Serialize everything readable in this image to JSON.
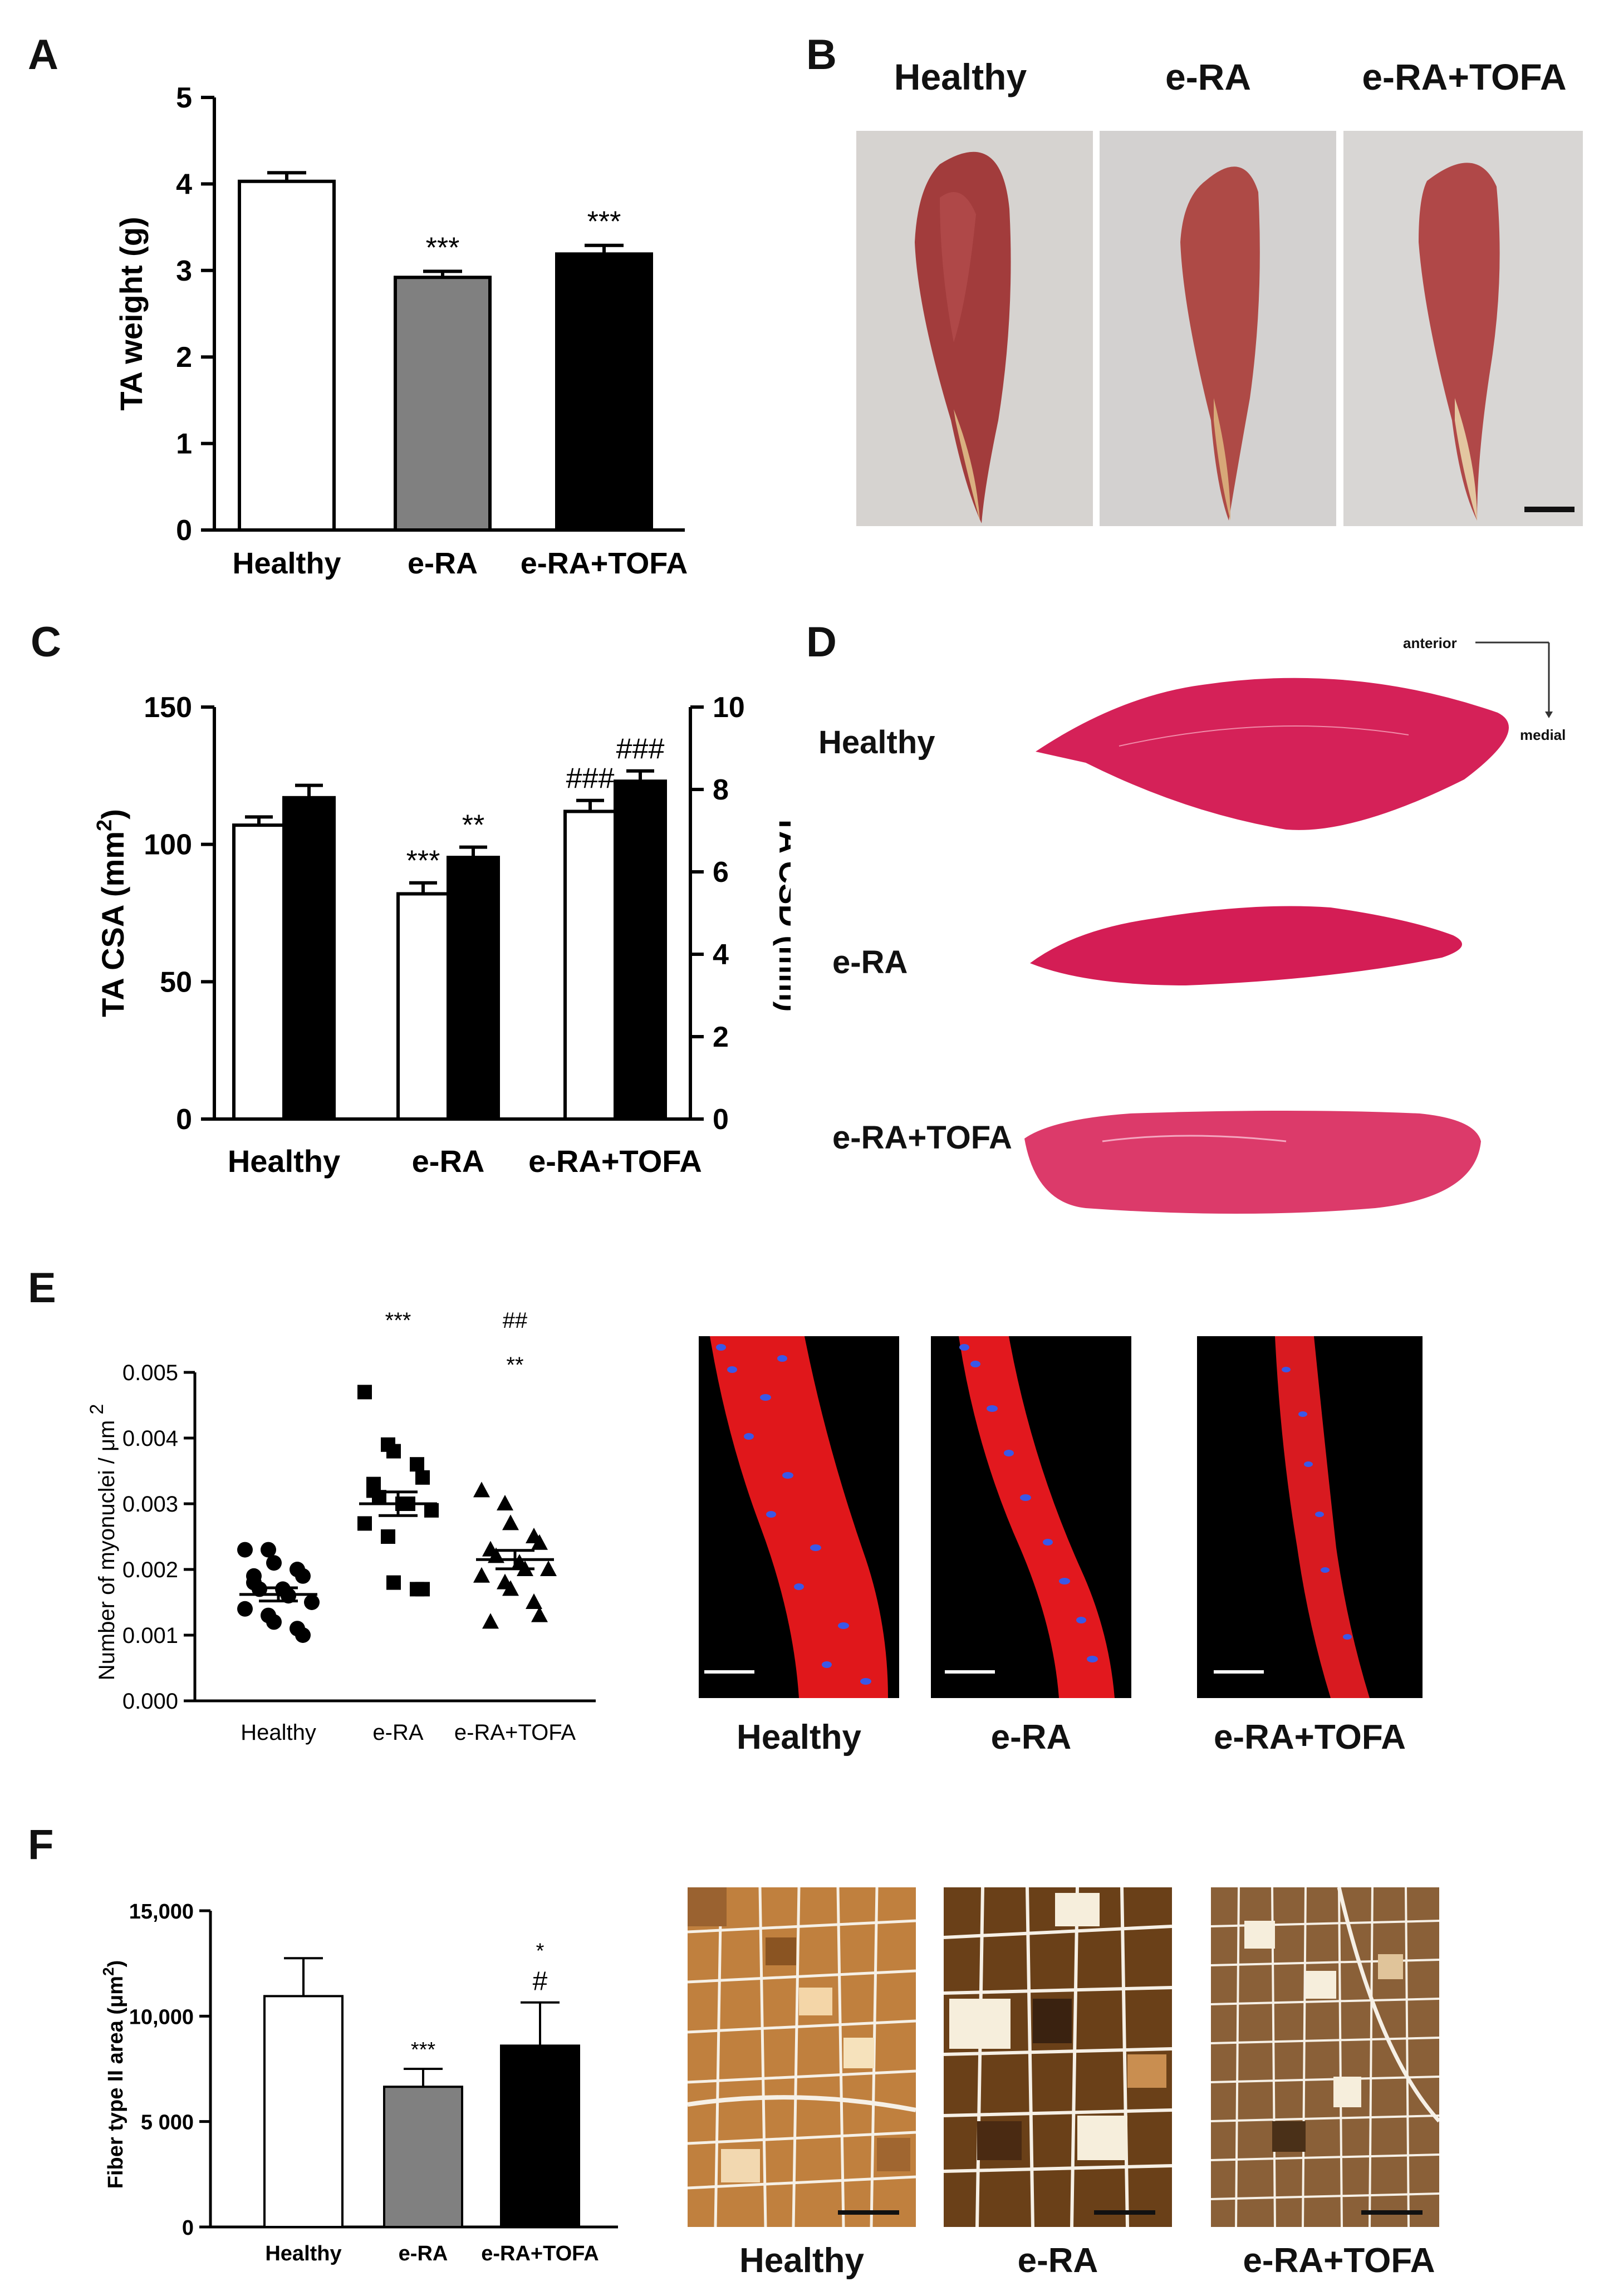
{
  "panels": {
    "A": "A",
    "B": "B",
    "C": "C",
    "D": "D",
    "E": "E",
    "F": "F"
  },
  "panelB": {
    "labels": [
      "Healthy",
      "e-RA",
      "e-RA+TOFA"
    ]
  },
  "panelD": {
    "labels": [
      "Healthy",
      "e-RA",
      "e-RA+TOFA"
    ],
    "orientation": {
      "anterior": "anterior",
      "medial": "medial"
    }
  },
  "panelE_images": {
    "labels": [
      "Healthy",
      "e-RA",
      "e-RA+TOFA"
    ]
  },
  "panelF_images": {
    "labels": [
      "Healthy",
      "e-RA",
      "e-RA+TOFA"
    ]
  },
  "colors": {
    "healthy_fill": "#ffffff",
    "era_fill": "#808080",
    "tofa_fill": "#000000",
    "muscle_photo": "#a03a3a",
    "he_stain": "#d8205a",
    "fluor_red": "#e01818",
    "fluor_blue": "#3a58e8",
    "atpase_dark": "#5a3816",
    "atpase_light": "#f6eedc"
  },
  "chart_data": [
    {
      "id": "A",
      "type": "bar",
      "categories": [
        "Healthy",
        "e-RA",
        "e-RA+TOFA"
      ],
      "values": [
        4.03,
        2.92,
        3.19
      ],
      "errors": [
        0.1,
        0.07,
        0.1
      ],
      "significance": [
        "",
        "***",
        "***"
      ],
      "xlabel": "",
      "ylabel": "TA weight (g)",
      "ylim": [
        0,
        5
      ],
      "yticks": [
        "0",
        "1",
        "2",
        "3",
        "4",
        "5"
      ]
    },
    {
      "id": "C",
      "type": "bar",
      "categories": [
        "Healthy",
        "e-RA",
        "e-RA+TOFA"
      ],
      "series": [
        {
          "name": "TA CSA (mm2)",
          "axis": "left",
          "values": [
            107,
            82,
            112
          ],
          "errors": [
            3,
            4,
            4
          ],
          "significance": [
            "",
            "***",
            "###"
          ]
        },
        {
          "name": "TA CSD (mm)",
          "axis": "right",
          "values": [
            7.8,
            6.35,
            8.2
          ],
          "errors": [
            0.3,
            0.25,
            0.25
          ],
          "significance": [
            "",
            "**",
            "###"
          ]
        }
      ],
      "ylabel_left": "TA CSA (mm",
      "ylabel_left_sup": "2",
      "ylabel_left_end": ")",
      "ylabel_right": "TA CSD (mm)",
      "ylim_left": [
        0,
        150
      ],
      "ylim_right": [
        0,
        10
      ],
      "yticks_left": [
        "0",
        "50",
        "100",
        "150"
      ],
      "yticks_right": [
        "0",
        "2",
        "4",
        "6",
        "8",
        "10"
      ]
    },
    {
      "id": "E",
      "type": "scatter",
      "categories": [
        "Healthy",
        "e-RA",
        "e-RA+TOFA"
      ],
      "points": [
        [
          0.0023,
          0.0023,
          0.0021,
          0.002,
          0.0019,
          0.0018,
          0.0017,
          0.0017,
          0.0016,
          0.0015,
          0.0014,
          0.0013,
          0.0012,
          0.0011,
          0.001,
          0.0019
        ],
        [
          0.0047,
          0.0039,
          0.0038,
          0.0036,
          0.0034,
          0.0032,
          0.0031,
          0.003,
          0.003,
          0.0029,
          0.0027,
          0.0025,
          0.0018,
          0.0017,
          0.0017,
          0.0033
        ],
        [
          0.0032,
          0.003,
          0.0027,
          0.0025,
          0.0024,
          0.0023,
          0.0022,
          0.0021,
          0.002,
          0.002,
          0.0019,
          0.0018,
          0.0017,
          0.0015,
          0.0013,
          0.0012
        ]
      ],
      "means": [
        0.00162,
        0.003,
        0.00215
      ],
      "sem": [
        0.0001,
        0.00018,
        0.00014
      ],
      "significance_top": [
        "",
        "***",
        "##"
      ],
      "significance_bottom": [
        "",
        "",
        "**"
      ],
      "ylabel": "Number of myonuclei / μm",
      "ylabel_sup": "2",
      "ylim": [
        0,
        0.005
      ],
      "yticks": [
        "0.000",
        "0.001",
        "0.002",
        "0.003",
        "0.004",
        "0.005"
      ],
      "markers": [
        "circle",
        "square",
        "triangle"
      ]
    },
    {
      "id": "F",
      "type": "bar",
      "categories": [
        "Healthy",
        "e-RA",
        "e-RA+TOFA"
      ],
      "values": [
        10950,
        6650,
        8600
      ],
      "errors": [
        1800,
        850,
        2050
      ],
      "significance_top": [
        "",
        "***",
        "*"
      ],
      "significance_bottom": [
        "",
        "",
        "#"
      ],
      "ylabel": "Fiber type II area (μm",
      "ylabel_sup": "2",
      "ylabel_end": ")",
      "ylim": [
        0,
        15000
      ],
      "yticks": [
        "0",
        "5 000",
        "10,000",
        "15,000"
      ]
    }
  ]
}
